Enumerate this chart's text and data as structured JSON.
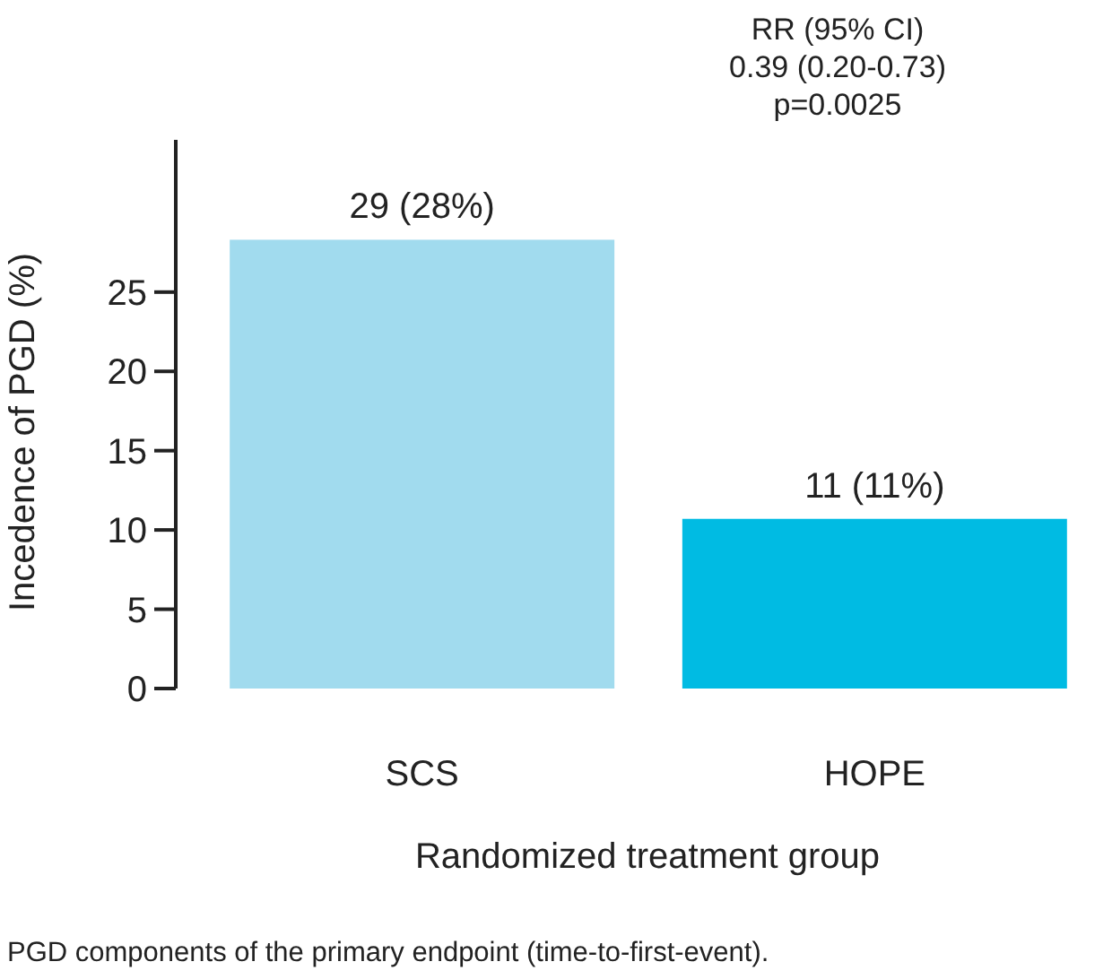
{
  "chart_data": {
    "type": "bar",
    "ylabel": "Incedence of PGD (%)",
    "xlabel": "Randomized treatment group",
    "categories": [
      "SCS",
      "HOPE"
    ],
    "values": [
      28.3,
      10.7
    ],
    "colors": [
      "#a1dbee",
      "#00bbe3"
    ],
    "value_labels": [
      "29 (28%)",
      "11 (11%)"
    ],
    "ylim": [
      0,
      34.6
    ],
    "yticks": [
      0,
      5,
      10,
      15,
      20,
      25
    ],
    "grid": false,
    "annotations": [
      "RR (95% CI)",
      "0.39 (0.20-0.73)",
      "p=0.0025",
      "PGD components of the primary endpoint (time-to-first-event)."
    ]
  }
}
